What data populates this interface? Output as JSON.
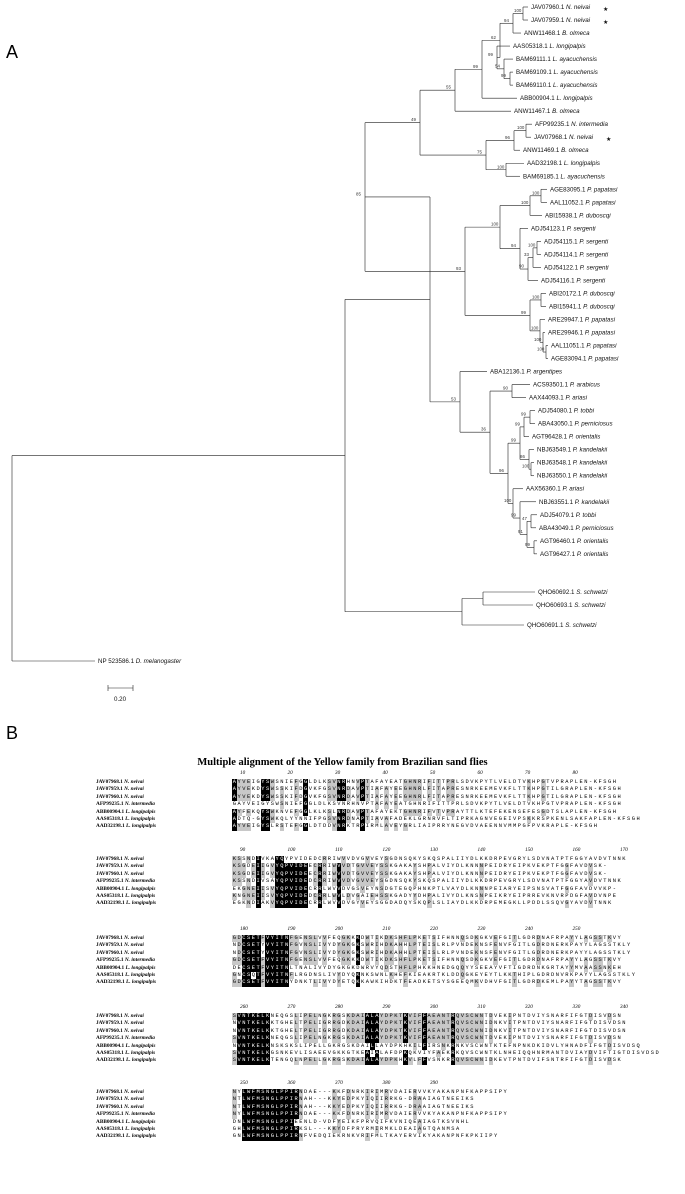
{
  "panel_a": {
    "label": "A",
    "scale_label": "0.20",
    "leaves": [
      {
        "acc": "JAV07960.1",
        "sp": "N. neivai",
        "star": true
      },
      {
        "acc": "JAV07959.1",
        "sp": "N. neivai",
        "star": true
      },
      {
        "acc": "ANW11468.1",
        "sp": "B. olmeca",
        "star": false
      },
      {
        "acc": "AAS05318.1",
        "sp": "L. longipalpis",
        "star": false
      },
      {
        "acc": "BAM69111.1",
        "sp": "L. ayacuchensis",
        "star": false
      },
      {
        "acc": "BAM69109.1",
        "sp": "L. ayacuchensis",
        "star": false
      },
      {
        "acc": "BAM69110.1",
        "sp": "L. ayacuchensis",
        "star": false
      },
      {
        "acc": "ABB00904.1",
        "sp": "L. longipalpis",
        "star": false
      },
      {
        "acc": "ANW11467.1",
        "sp": "B. olmeca",
        "star": false
      },
      {
        "acc": "AFP99235.1",
        "sp": "N. intermedia",
        "star": false
      },
      {
        "acc": "JAV07968.1",
        "sp": "N. neivai",
        "star": true
      },
      {
        "acc": "ANW11469.1",
        "sp": "B. olmeca",
        "star": false
      },
      {
        "acc": "AAD32198.1",
        "sp": "L. longipalpis",
        "star": false
      },
      {
        "acc": "BAM69185.1",
        "sp": "L. ayacuchensis",
        "star": false
      },
      {
        "acc": "AGE83095.1",
        "sp": "P. papatasi",
        "star": false
      },
      {
        "acc": "AAL11052.1",
        "sp": "P. papatasi",
        "star": false
      },
      {
        "acc": "ABI15938.1",
        "sp": "P. duboscqi",
        "star": false
      },
      {
        "acc": "ADJ54123.1",
        "sp": "P. sergenti",
        "star": false
      },
      {
        "acc": "ADJ54115.1",
        "sp": "P. sergenti",
        "star": false
      },
      {
        "acc": "ADJ54114.1",
        "sp": "P. sergenti",
        "star": false
      },
      {
        "acc": "ADJ54122.1",
        "sp": "P. sergenti",
        "star": false
      },
      {
        "acc": "ADJ54116.1",
        "sp": "P. sergenti",
        "star": false
      },
      {
        "acc": "ABI20172.1",
        "sp": "P. duboscqi",
        "star": false
      },
      {
        "acc": "ABI15941.1",
        "sp": "P. duboscqi",
        "star": false
      },
      {
        "acc": "ARE29947.1",
        "sp": "P. papatasi",
        "star": false
      },
      {
        "acc": "ARE29946.1",
        "sp": "P. papatasi",
        "star": false
      },
      {
        "acc": "AAL11051.1",
        "sp": "P. papatasi",
        "star": false
      },
      {
        "acc": "AGE83094.1",
        "sp": "P. papatasi",
        "star": false
      },
      {
        "acc": "ABA12136.1",
        "sp": "P. argentipes",
        "star": false
      },
      {
        "acc": "ACS93501.1",
        "sp": "P. arabicus",
        "star": false
      },
      {
        "acc": "AAX44093.1",
        "sp": "P. ariasi",
        "star": false
      },
      {
        "acc": "ADJ54080.1",
        "sp": "P. tobbi",
        "star": false
      },
      {
        "acc": "ABA43050.1",
        "sp": "P. perniciosus",
        "star": false
      },
      {
        "acc": "AGT96428.1",
        "sp": "P. orientalis",
        "star": false
      },
      {
        "acc": "NBJ63549.1",
        "sp": "P. kandelakii",
        "star": false
      },
      {
        "acc": "NBJ63548.1",
        "sp": "P. kandelakii",
        "star": false
      },
      {
        "acc": "NBJ63550.1",
        "sp": "P. kandelakii",
        "star": false
      },
      {
        "acc": "AAX56360.1",
        "sp": "P. ariasi",
        "star": false
      },
      {
        "acc": "NBJ63551.1",
        "sp": "P. kandelakii",
        "star": false
      },
      {
        "acc": "ADJ54079.1",
        "sp": "P. tobbi",
        "star": false
      },
      {
        "acc": "ABA43049.1",
        "sp": "P. perniciosus",
        "star": false
      },
      {
        "acc": "AGT96460.1",
        "sp": "P. orientalis",
        "star": false
      },
      {
        "acc": "AGT96427.1",
        "sp": "P. orientalis",
        "star": false
      },
      {
        "acc": "QHO60692.1",
        "sp": "S. schwetzi",
        "star": false
      },
      {
        "acc": "QHO60693.1",
        "sp": "S. schwetzi",
        "star": false
      },
      {
        "acc": "QHO60691.1",
        "sp": "S. schwetzi",
        "star": false
      },
      {
        "acc": "NP 523586.1",
        "sp": "D. melanogaster",
        "star": false
      }
    ],
    "bootstrap": [
      "100",
      "94",
      "99",
      "54",
      "99",
      "62",
      "99",
      "55",
      "100",
      "96",
      "100",
      "75",
      "49",
      "100",
      "100",
      "100",
      "33",
      "90",
      "94",
      "100",
      "100",
      "100",
      "100",
      "100",
      "99",
      "93",
      "85",
      "90",
      "99",
      "99",
      "100",
      "86",
      "99",
      "47",
      "99",
      "91",
      "99",
      "100",
      "96",
      "36",
      "53"
    ]
  },
  "panel_b": {
    "label": "B",
    "title": "Multiple alignment of the Yellow family from Brazilian sand flies",
    "names": [
      "JAV07968.1 N. neivai",
      "JAV07959.1 N. neivai",
      "JAV07960.1 N. neivai",
      "AFP99235.1 N. intermedia",
      "ABB00904.1 L. longipalpis",
      "AAS05318.1 L. longipalpis",
      "AAD32198.1 L. longipalpis"
    ],
    "blocks": [
      {
        "ticks": [
          "10",
          "20",
          "30",
          "40",
          "50",
          "60",
          "70",
          "80"
        ],
        "seqs": [
          "AYVEIGYSWSNIEFGGLDLKSVNRHNVPTAFAYEATGHNRIFITTPRLSDVKPYTLVELDTVKHPGTVPRAPLEN-KFSGH",
          "AYVEKDYSWSSKIFDGVKFGSVNRDAVPTIAFAYEEGHNRLFITAPRESNRKEEMEVKFLTTKHPGTILGRAPLEN-KFSGH",
          "AYVEKDYSWSSKIFDGVKFGSVNRDAVPTIAFAYEEGHNRLFITAPRESNRKEEMEVKFLTTKHPGTILGRAPLEN-KFSGH",
          "GAYVEIGYSWSNIEFGGLDLKSVNRHNVPTAFAYEATGHNRIFITTPRLSDVKPYTLVELDTVKHPGTVPRAPLEN-KFSGH",
          "AYFEKQYSWKNVEFGGLKLKSLNRDAVPTAFAYEKTGHNRIFVTVPRAYTTLKTEFEKENSEFESGDTSLAPLEN-KFSGH",
          "ADTQ-GYSWKQLYYNNIFPGSVNRDNAPTIAVAFADEKLGRNRVFLTIPRKAGNVEGEIVPSKKRSPKENLSAKFAPLEN-KFSGH",
          "AYVEIGYSLRSTEFGGLDTDDVNRKTRPIRMLAVEYGRLIAIPRRYNEGVDVAEENNVMMPGFPVKRAPLE-KFSGH"
        ]
      },
      {
        "ticks": [
          "90",
          "100",
          "110",
          "120",
          "130",
          "140",
          "150",
          "160",
          "170"
        ],
        "seqs": [
          "KSSNDIVKAYQYPVIDEDCRRIWVVDVGVVEYSGDNSQKYSKQSPALIIYDLKKDRPEVGRYLSDVNATPTFGGYAVDVTNNK",
          "KSGDEIIGVYQPVIDEECRRIWVVDTGVVEYSSKGAKAYSHPALVIYDLKNNNPEIDRYEIPKVEKPTFGGFAVDVSK-",
          "KSGDEIIGVYQPVIDEECRRIWVVDTGVVEYSSKGAKAYSHPALVIYDLKNNNPEIDRYEIPKVEKPTFGGFAVDVSK-",
          "KSSNDIVSAYQPVIDEDCRRIWVVDVGVVEYSGDNSQKYSKQSPALIIYDLKKDRPEVGRYLSDVNATPTFGGYAVDVTNNK",
          "EKGNEIISVYQPVIDECRRLWVVDVGSVEYNSDGTEGQPHNKPTLVAYDLKNNNPEIARYEIPSNSVATFGGFAVDVVKP-",
          "KNGNEIISVYQPVIDEDCRRLWVLDVGAIEHSSKGADYYDHPALIVYDLKNSNPEIKRYEIPRREVKNVRPDGFAVDVNPE",
          "EGKNDIAKVYQPVIDECRRLWVVDVGYVEYSGGDADQYSKQPLSLIAYDLKKDRPEMEGKLLPDDLSSQVGYAVDVTNNK"
        ]
      },
      {
        "ticks": [
          "180",
          "190",
          "200",
          "210",
          "220",
          "230",
          "240",
          "250"
        ],
        "seqs": [
          "GDCSETFVYITNFGENSLVVFEQGKKKDWTIKDKSHFLPKETSIFHNNQSDKGKVEFGITLGDRDNAFRPAYYLAGSSTKVY",
          "NDCSETYVYITNFGVNSLIVYDYGKGKSWRIHDKAHHLPTEISLRLPVNDEKNSFENVFGITLGDRDNERKPAYYLAGSSTKLY",
          "NDCSETYVYITNFGVNSLIVYDYGKGKSWRIHDKAHHLPTEISLRLPVNDEKNSFENVFGITLGDRDNERKPAYYLAGSSTKLY",
          "GDCSETFVYITNFGENSLVVFEQGKKKDWTIKDKSHFLPKETSIFHNNQSDKGKVEFGITLGDRDNAFRPAYYLAGSSTKVY",
          "DECSETFVYITNLTNALIVYDYGKGKDWRVYQDSTHFLPHKKHNEDGQQYYSEEAYVFTIGDRDNKGRTAYYMVAASSNKEH",
          "GNCSQTFVYITNFLRGDNSLIVYDYQKNKSWNLKHEFKIEAKRTKLDDQGKEYEYTLKKTHIPLGDRDNVRKPAYYLAGSSTKLY",
          "GDCSETFVYITNYDNKTLIVYDYETQKKAWKIHDKTFEADKETSYSGEEQMKVDHVFGITLGDRDKEMLPAYYTAGSSTKVY"
        ]
      },
      {
        "ticks": [
          "260",
          "270",
          "280",
          "290",
          "300",
          "310",
          "320",
          "330",
          "340"
        ],
        "seqs": [
          "SVNTKELKNEQGSLIPELNGKRGSKDAIALAYDPKTKVIFFAEANTRQVSCWNTDVEKIPNTDVIYSNARFIFGTDISVDSN",
          "NVNTKELKKTGHELTPELIGRRGDKDAIALAYDPKTKVIFFAEANTRQVSCWNIDNKVITPNTDVIYSNARFIFGTDISVDSN",
          "NVNTKELKKTGHELTPELIGRRGDKDAIALAYDPKTKVIFFAEANTRQVSCWNIDNKVITPNTDVIYSNARFIFGTDISVDSN",
          "SVNTKELKNEQGSLIPELNGKRGSKDAIALAYDPKTKVIFFAEANTRQVSCWNTDVEKIPNTDVIYSNARFIFGTDISVDSN",
          "NVNTKELKNSKSKSLIPELLGKRGSKDAILLAYDPKHKILFIRSNKRNKVSCWNTKTEFNPNKDKIDVLYHNADFIFGTDISVDSQ",
          "SVNTKELKGSNKEVLISAEEVGKKGTKEAIALAFDPKQKVIYFAEKRKQVSCWNTKLNHEIQQHNRMANTDVIAYDVIFTIGTDISVDSD",
          "SVNTKELKTENGQLNPELLGKRGSKDAIALAYDPKHKVLFFVSNKRRQVSCWNIDKEVTPNTDVIFSNTRFIFGTDISVDSK"
        ]
      },
      {
        "ticks": [
          "350",
          "360",
          "370",
          "380",
          "390"
        ],
        "seqs": [
          "NYLWFMSNGLPPIRNDAE---KKFDNRKIRIMRVDAIERVVKYAKANPNFKAPPSIPY",
          "NTLWFMSNGLPPIRNAH---KKYEDPKYIQIIRRKG-DRAAIAGTNEEIKS",
          "NTLWFMSNGLPPIRNAH---KKYEDPKYIQIIRRKG-DRAAIAGTNEEIKS",
          "NYLWFMSNGLPPIRNDAE---KKFDNRKIRIMRVDAIERVVKYAKANPNFKAPPSIPY",
          "DNLWFMSNGLPPIEENLD-VDFYEIKFPRVQIFKVNIQEAIAGTKSVNHL",
          "GHLWFMSNGLPPIRKSL---KKYDFPRYRMIRMKLDEAIAGTQANMSA",
          "GNLWFMSNGLPPIRNFVEDQIEKRNKVRIFMLTKAYERVIKYAKANPNFKPKIIPY"
        ]
      }
    ]
  }
}
